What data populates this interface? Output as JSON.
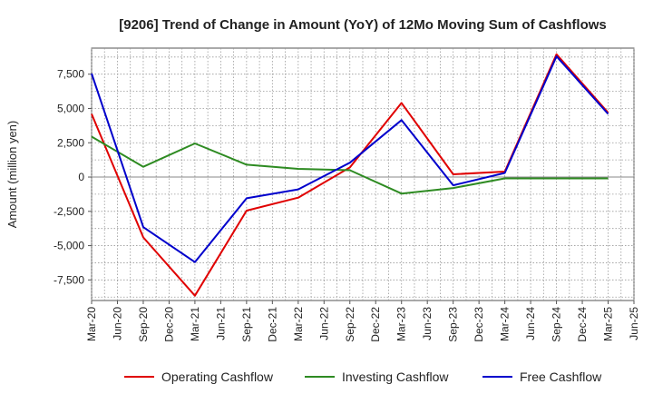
{
  "chart_data": {
    "type": "line",
    "title": "[9206]  Trend of Change in Amount (YoY) of 12Mo Moving Sum of Cashflows",
    "xlabel": "",
    "ylabel": "Amount (million yen)",
    "ylim": [
      -9000,
      9400
    ],
    "grid": true,
    "legend_position": "bottom",
    "categories": [
      "Mar-20",
      "Jun-20",
      "Sep-20",
      "Dec-20",
      "Mar-21",
      "Jun-21",
      "Sep-21",
      "Dec-21",
      "Mar-22",
      "Jun-22",
      "Sep-22",
      "Dec-22",
      "Mar-23",
      "Jun-23",
      "Sep-23",
      "Dec-23",
      "Mar-24",
      "Jun-24",
      "Sep-24",
      "Dec-24",
      "Mar-25",
      "Jun-25"
    ],
    "y_ticks": [
      {
        "value": 7500,
        "label": "7,500"
      },
      {
        "value": 5000,
        "label": "5,000"
      },
      {
        "value": 2500,
        "label": "2,500"
      },
      {
        "value": 0,
        "label": "0"
      },
      {
        "value": -2500,
        "label": "-2,500"
      },
      {
        "value": -5000,
        "label": "-5,000"
      },
      {
        "value": -7500,
        "label": "-7,500"
      }
    ],
    "series": [
      {
        "name": "Operating Cashflow",
        "color": "#e00000",
        "values": [
          4600,
          null,
          -4400,
          null,
          -8650,
          null,
          -2450,
          null,
          -1500,
          null,
          700,
          null,
          5400,
          null,
          200,
          null,
          400,
          null,
          8950,
          null,
          4700,
          null
        ]
      },
      {
        "name": "Investing Cashflow",
        "color": "#2e8b22",
        "values": [
          2950,
          null,
          750,
          null,
          2450,
          null,
          900,
          null,
          600,
          null,
          500,
          null,
          -1200,
          null,
          -800,
          null,
          -100,
          null,
          -100,
          null,
          -100,
          null
        ]
      },
      {
        "name": "Free Cashflow",
        "color": "#0000cc",
        "values": [
          7550,
          null,
          -3650,
          null,
          -6200,
          null,
          -1550,
          null,
          -900,
          null,
          1050,
          null,
          4150,
          null,
          -600,
          null,
          300,
          null,
          8800,
          null,
          4600,
          null
        ]
      }
    ]
  }
}
